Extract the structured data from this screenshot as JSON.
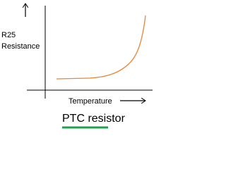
{
  "axis_labels": {
    "y_line_1": "R25",
    "y_line_2": "Resistance",
    "x": "Temperature"
  },
  "caption": "PTC resistor"
}
